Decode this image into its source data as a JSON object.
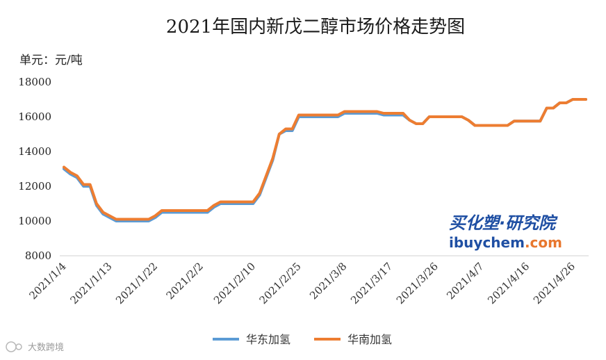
{
  "chart_data": {
    "type": "line",
    "title": "2021年国内新戊二醇市场价格走势图",
    "ylabel": "单元：元/吨",
    "xlabel": "",
    "ylim": [
      8000,
      18000
    ],
    "yticks": [
      8000,
      10000,
      12000,
      14000,
      16000,
      18000
    ],
    "x": [
      "2021/1/4",
      "2021/1/5",
      "2021/1/6",
      "2021/1/7",
      "2021/1/8",
      "2021/1/11",
      "2021/1/12",
      "2021/1/13",
      "2021/1/14",
      "2021/1/15",
      "2021/1/18",
      "2021/1/19",
      "2021/1/20",
      "2021/1/21",
      "2021/1/22",
      "2021/1/25",
      "2021/1/26",
      "2021/1/27",
      "2021/1/28",
      "2021/1/29",
      "2021/2/1",
      "2021/2/2",
      "2021/2/3",
      "2021/2/4",
      "2021/2/5",
      "2021/2/6",
      "2021/2/7",
      "2021/2/8",
      "2021/2/9",
      "2021/2/10",
      "2021/2/18",
      "2021/2/19",
      "2021/2/20",
      "2021/2/22",
      "2021/2/23",
      "2021/2/24",
      "2021/2/25",
      "2021/2/26",
      "2021/3/1",
      "2021/3/2",
      "2021/3/3",
      "2021/3/4",
      "2021/3/5",
      "2021/3/8",
      "2021/3/9",
      "2021/3/10",
      "2021/3/11",
      "2021/3/12",
      "2021/3/15",
      "2021/3/16",
      "2021/3/17",
      "2021/3/18",
      "2021/3/19",
      "2021/3/22",
      "2021/3/23",
      "2021/3/24",
      "2021/3/25",
      "2021/3/26",
      "2021/3/29",
      "2021/3/30",
      "2021/3/31",
      "2021/4/1",
      "2021/4/2",
      "2021/4/6",
      "2021/4/7",
      "2021/4/8",
      "2021/4/9",
      "2021/4/12",
      "2021/4/13",
      "2021/4/14",
      "2021/4/15",
      "2021/4/16",
      "2021/4/19",
      "2021/4/20",
      "2021/4/21",
      "2021/4/22",
      "2021/4/23",
      "2021/4/25",
      "2021/4/26",
      "2021/4/27",
      "2021/4/28"
    ],
    "xticks_shown": [
      "2021/1/4",
      "2021/1/13",
      "2021/1/22",
      "2021/2/2",
      "2021/2/10",
      "2021/2/25",
      "2021/3/8",
      "2021/3/17",
      "2021/3/26",
      "2021/4/7",
      "2021/4/16",
      "2021/4/26"
    ],
    "series": [
      {
        "name": "华东加氢",
        "color": "#5b9bd5",
        "values": [
          13000,
          12700,
          12500,
          12000,
          12000,
          10900,
          10400,
          10200,
          10000,
          10000,
          10000,
          10000,
          10000,
          10000,
          10200,
          10500,
          10500,
          10500,
          10500,
          10500,
          10500,
          10500,
          10500,
          10800,
          11000,
          11000,
          11000,
          11000,
          11000,
          11000,
          11500,
          12500,
          13500,
          15000,
          15200,
          15200,
          16000,
          16000,
          16000,
          16000,
          16000,
          16000,
          16000,
          16200,
          16200,
          16200,
          16200,
          16200,
          16200,
          16100,
          16100,
          16100,
          16100,
          15800,
          15600,
          15600,
          16000,
          16000,
          16000,
          16000,
          16000,
          16000,
          15800,
          15500,
          15500,
          15500,
          15500,
          15500,
          15500,
          15750,
          15750,
          15750,
          15750,
          15750,
          16500,
          16500,
          16800,
          16800,
          17000,
          17000,
          17000
        ]
      },
      {
        "name": "华南加氢",
        "color": "#ed7d31",
        "values": [
          13100,
          12800,
          12600,
          12100,
          12100,
          11000,
          10500,
          10300,
          10100,
          10100,
          10100,
          10100,
          10100,
          10100,
          10300,
          10600,
          10600,
          10600,
          10600,
          10600,
          10600,
          10600,
          10600,
          10900,
          11100,
          11100,
          11100,
          11100,
          11100,
          11100,
          11600,
          12600,
          13600,
          15000,
          15300,
          15300,
          16100,
          16100,
          16100,
          16100,
          16100,
          16100,
          16100,
          16300,
          16300,
          16300,
          16300,
          16300,
          16300,
          16200,
          16200,
          16200,
          16200,
          15800,
          15600,
          15600,
          16000,
          16000,
          16000,
          16000,
          16000,
          16000,
          15800,
          15500,
          15500,
          15500,
          15500,
          15500,
          15500,
          15750,
          15750,
          15750,
          15750,
          15750,
          16500,
          16500,
          16800,
          16800,
          17000,
          17000,
          17000
        ]
      }
    ],
    "grid": false,
    "legend_position": "bottom"
  },
  "watermark": {
    "brand_cn": "买化塑·研究院",
    "brand_url_a": "ibuychem",
    "brand_url_b": ".com",
    "corner_text": "大数跨境"
  }
}
